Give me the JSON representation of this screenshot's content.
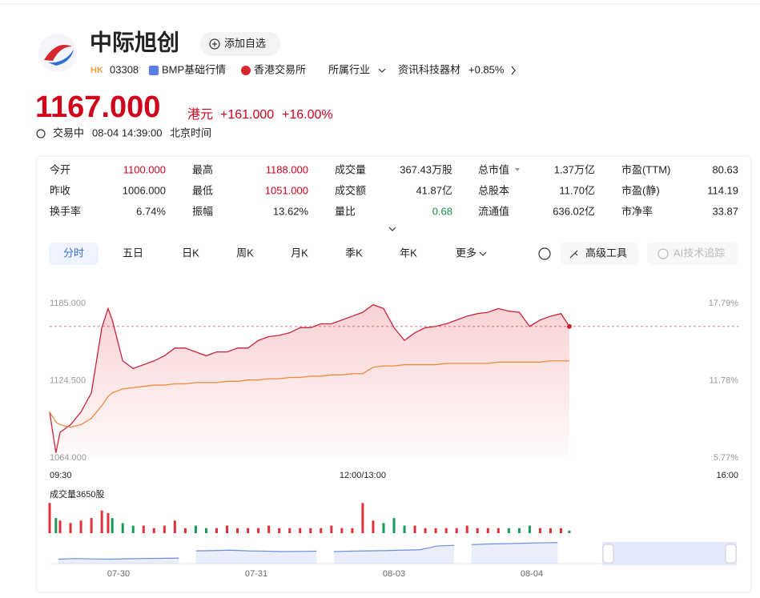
{
  "header": {
    "name": "中际旭创",
    "add_button": "添加自选",
    "market_tag": "HK",
    "code": "03308",
    "bmp": "BMP基础行情",
    "exchange": "香港交易所",
    "industry_label": "所属行业",
    "industry": "资讯科技器材",
    "industry_change": "+0.85%"
  },
  "quote": {
    "price": "1167.000",
    "currency": "港元",
    "change": "+161.000",
    "change_pct": "+16.00%",
    "status": "交易中",
    "time": "08-04 14:39:00",
    "timezone": "北京时间"
  },
  "stats": {
    "rows": [
      [
        {
          "label": "今开",
          "value": "1100.000",
          "color": "#d0021b"
        },
        {
          "label": "最高",
          "value": "1188.000",
          "color": "#d0021b"
        },
        {
          "label": "成交量",
          "value": "367.43万股",
          "color": "#222222"
        },
        {
          "label": "总市值",
          "value": "1.37万亿",
          "color": "#222222"
        },
        {
          "label": "市盈(TTM)",
          "value": "80.63",
          "color": "#222222"
        }
      ],
      [
        {
          "label": "昨收",
          "value": "1006.000",
          "color": "#222222"
        },
        {
          "label": "最低",
          "value": "1051.000",
          "color": "#d0021b"
        },
        {
          "label": "成交额",
          "value": "41.87亿",
          "color": "#222222"
        },
        {
          "label": "总股本",
          "value": "11.70亿",
          "color": "#222222"
        },
        {
          "label": "市盈(静)",
          "value": "114.19",
          "color": "#222222"
        }
      ],
      [
        {
          "label": "换手率",
          "value": "6.74%",
          "color": "#222222"
        },
        {
          "label": "振幅",
          "value": "13.62%",
          "color": "#222222"
        },
        {
          "label": "量比",
          "value": "0.68",
          "color": "#1a8f4e"
        },
        {
          "label": "流通值",
          "value": "636.02亿",
          "color": "#222222"
        },
        {
          "label": "市净率",
          "value": "33.87",
          "color": "#222222"
        }
      ]
    ]
  },
  "tabs": [
    "分时",
    "五日",
    "日K",
    "周K",
    "月K",
    "季K",
    "年K",
    "更多"
  ],
  "active_tab": 0,
  "tools": [
    "高级工具",
    "AI技术追踪"
  ],
  "chart_data": {
    "type": "line",
    "x": [
      "09:30",
      "09:33",
      "09:35",
      "09:40",
      "09:45",
      "09:50",
      "09:55",
      "09:58",
      "10:00",
      "10:05",
      "10:10",
      "10:15",
      "10:20",
      "10:25",
      "10:30",
      "10:35",
      "10:40",
      "10:45",
      "10:50",
      "10:55",
      "11:00",
      "11:05",
      "11:10",
      "11:15",
      "11:20",
      "11:25",
      "11:30",
      "11:35",
      "11:40",
      "11:45",
      "11:50",
      "11:55",
      "12:00",
      "13:05",
      "13:10",
      "13:15",
      "13:20",
      "13:25",
      "13:30",
      "13:35",
      "13:40",
      "13:45",
      "13:50",
      "13:55",
      "14:00",
      "14:05",
      "14:10",
      "14:15",
      "14:20",
      "14:25",
      "14:30",
      "14:35",
      "14:39"
    ],
    "series": [
      {
        "color": "#c8243a",
        "values": [
          1100,
          1068,
          1084,
          1090,
          1100,
          1115,
          1166,
          1181,
          1172,
          1140,
          1134,
          1137,
          1140,
          1144,
          1150,
          1150,
          1147,
          1144,
          1147,
          1147,
          1150,
          1150,
          1156,
          1159,
          1160,
          1162,
          1166,
          1166,
          1169,
          1169,
          1172,
          1175,
          1178,
          1184,
          1181,
          1166,
          1156,
          1162,
          1166,
          1167,
          1169,
          1172,
          1175,
          1177,
          1178,
          1181,
          1179,
          1178,
          1167,
          1172,
          1175,
          1177,
          1167
        ]
      },
      {
        "color": "#ee8a3a",
        "values": [
          1100,
          1092,
          1090,
          1088,
          1090,
          1095,
          1105,
          1112,
          1115,
          1118,
          1119,
          1120,
          1121,
          1121,
          1122,
          1122,
          1123,
          1123,
          1123,
          1124,
          1124,
          1125,
          1125,
          1126,
          1126,
          1127,
          1127,
          1128,
          1128,
          1129,
          1129,
          1130,
          1130,
          1135,
          1136,
          1136,
          1137,
          1137,
          1137,
          1137,
          1138,
          1138,
          1138,
          1138,
          1138,
          1139,
          1139,
          1139,
          1139,
          1139,
          1140,
          1140,
          1140
        ]
      }
    ],
    "xlim": [
      "09:30",
      "16:00"
    ],
    "xticks": [
      "09:30",
      "12:00/13:00",
      "16:00"
    ],
    "ylim": [
      1064,
      1185
    ],
    "yticks": [
      {
        "value": 1185,
        "label": "1185.000"
      },
      {
        "value": 1124.5,
        "label": "1124.500"
      },
      {
        "value": 1064,
        "label": "1064.000"
      }
    ],
    "y2lim": [
      5.77,
      17.79
    ],
    "y2ticks": [
      {
        "value": 17.79,
        "label": "17.79%"
      },
      {
        "value": 11.78,
        "label": "11.78%"
      },
      {
        "value": 5.77,
        "label": "5.77%"
      }
    ],
    "volume": {
      "title": "成交量3650股",
      "up_color": "#e0303a",
      "down_color": "#1a9a5a",
      "ylim": [
        0,
        14
      ],
      "values": [
        12,
        6,
        5,
        4,
        5,
        6,
        9,
        8,
        6,
        4,
        3,
        3,
        2,
        3,
        5,
        2,
        3,
        2,
        2,
        3,
        2,
        2,
        2,
        3,
        2,
        2,
        2,
        2,
        2,
        3,
        2,
        2,
        12,
        5,
        4,
        6,
        3,
        3,
        2,
        2,
        2,
        2,
        3,
        2,
        2,
        2,
        2,
        2,
        3,
        2,
        2,
        2,
        1
      ]
    },
    "overview": {
      "days": [
        "07-30",
        "07-31",
        "08-03",
        "08-04"
      ],
      "color": "#6b8fe0",
      "ylim": [
        870,
        1020
      ],
      "values": [
        [
          890,
          895,
          892,
          890,
          893,
          895,
          896,
          898
        ],
        [
          950,
          952,
          955,
          950,
          948,
          945,
          946,
          948
        ],
        [
          945,
          948,
          950,
          952,
          955,
          958,
          985,
          990
        ],
        [
          995,
          1000,
          1002,
          1005,
          1008,
          1010
        ]
      ]
    }
  }
}
